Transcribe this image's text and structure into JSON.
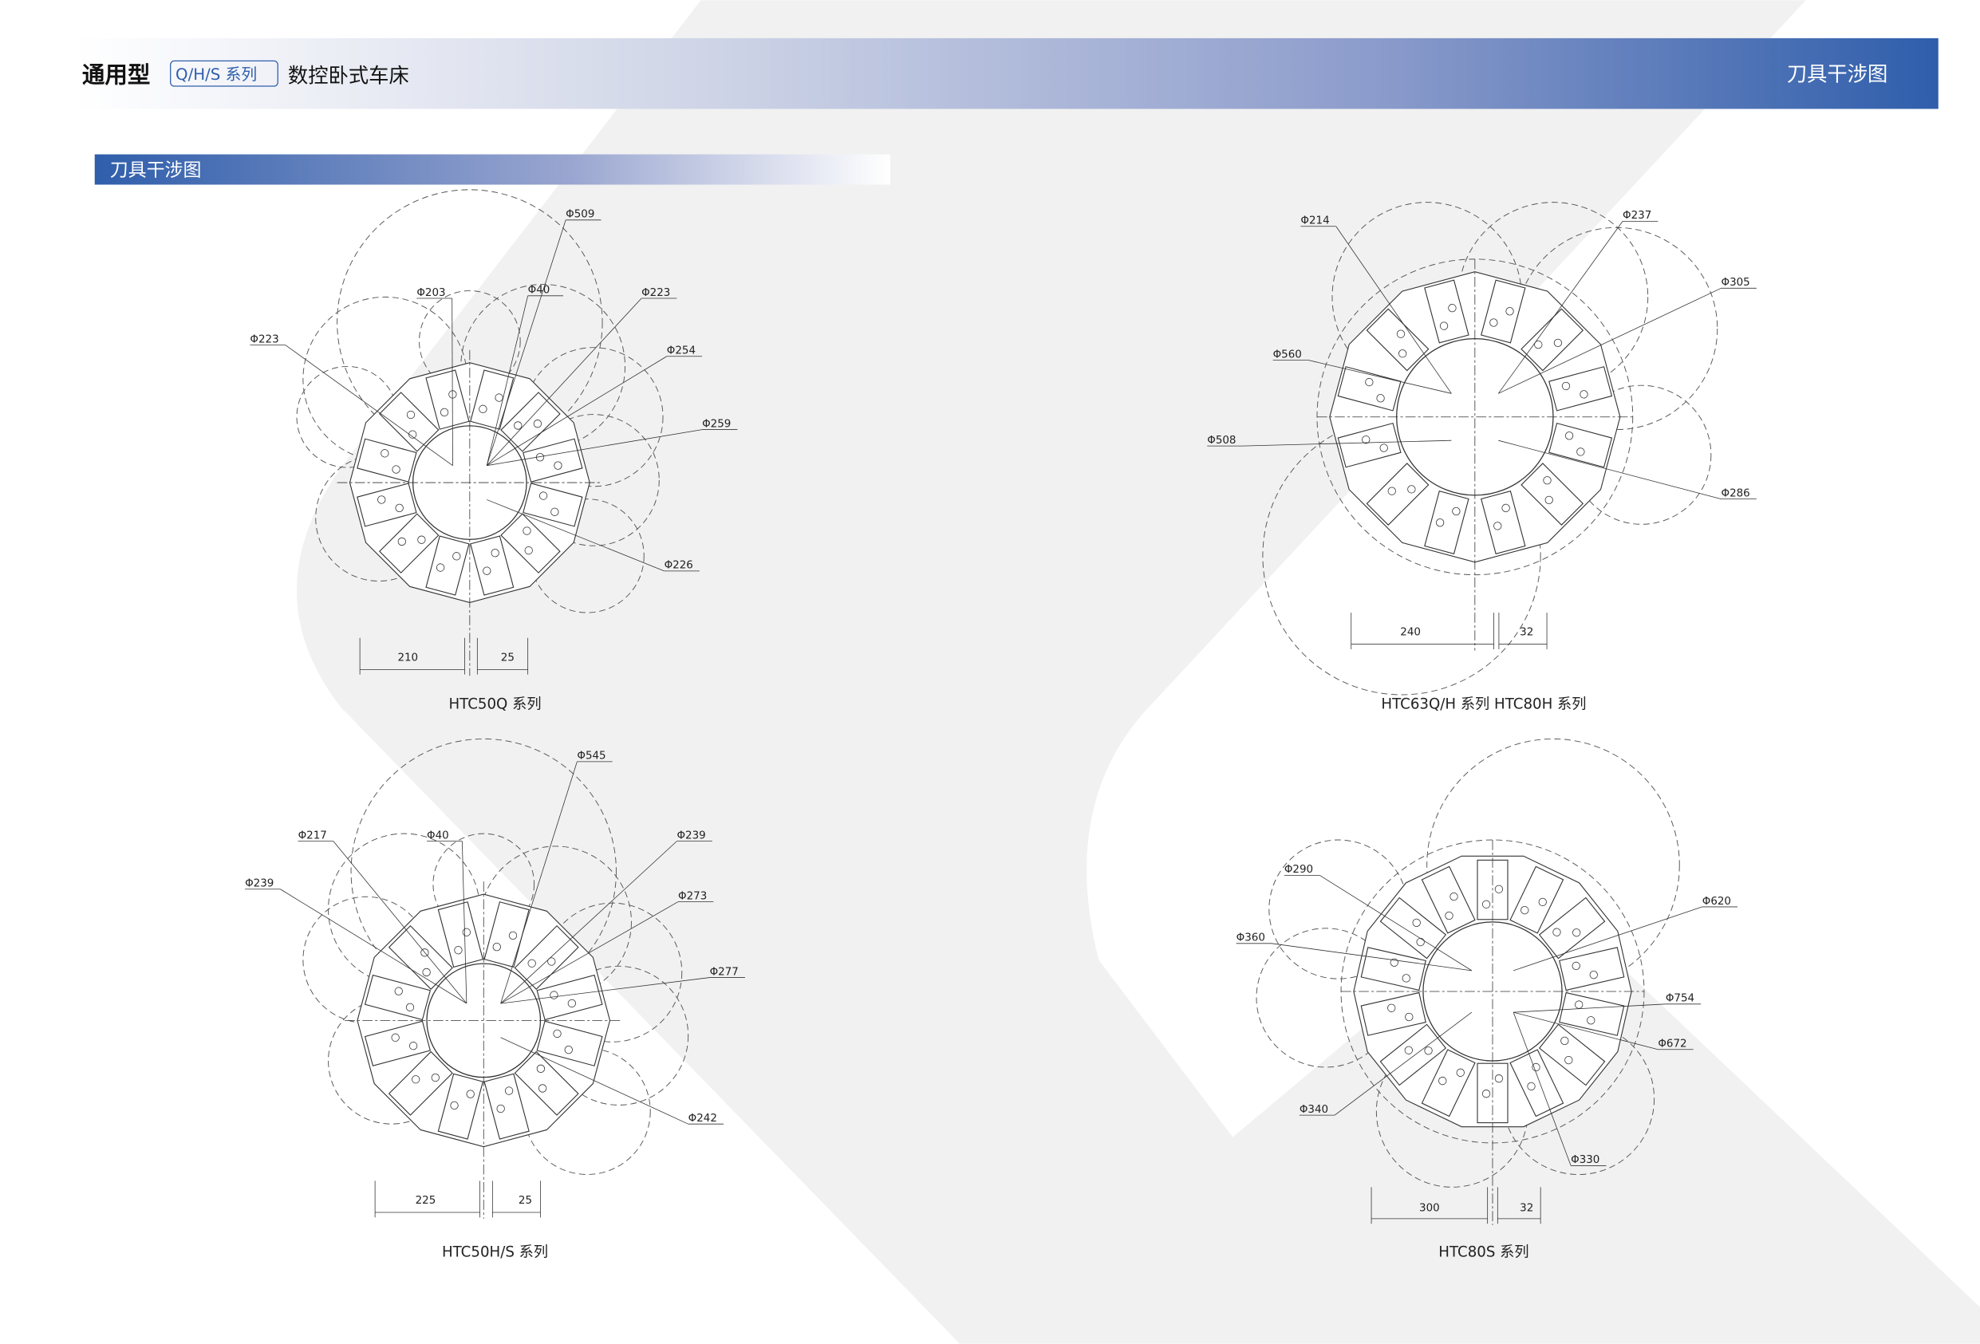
{
  "header": {
    "title_bold": "通用型",
    "series_badge": "Q/H/S 系列",
    "title_rest": "数控卧式车床",
    "right_title": "刀具干涉图"
  },
  "section": {
    "title": "刀具干涉图"
  },
  "colors": {
    "accent": "#2f5eab",
    "header_light": "#e8ebf5",
    "background_shape": "#f1f1f1"
  },
  "diagrams": [
    {
      "caption": "HTC50Q 系列",
      "labels": [
        "Φ509",
        "Φ203",
        "Φ40",
        "Φ223",
        "Φ223",
        "Φ254",
        "Φ259",
        "Φ226"
      ],
      "dims": [
        "210",
        "25"
      ]
    },
    {
      "caption": "HTC63Q/H 系列  HTC80H 系列",
      "labels": [
        "Φ214",
        "Φ237",
        "Φ305",
        "Φ560",
        "Φ508",
        "Φ286"
      ],
      "dims": [
        "240",
        "32"
      ]
    },
    {
      "caption": "HTC50H/S 系列",
      "labels": [
        "Φ545",
        "Φ217",
        "Φ40",
        "Φ239",
        "Φ239",
        "Φ273",
        "Φ277",
        "Φ242"
      ],
      "dims": [
        "225",
        "25"
      ]
    },
    {
      "caption": "HTC80S 系列",
      "labels": [
        "Φ290",
        "Φ360",
        "Φ620",
        "Φ754",
        "Φ672",
        "Φ340",
        "Φ330"
      ],
      "dims": [
        "300",
        "32"
      ]
    }
  ]
}
